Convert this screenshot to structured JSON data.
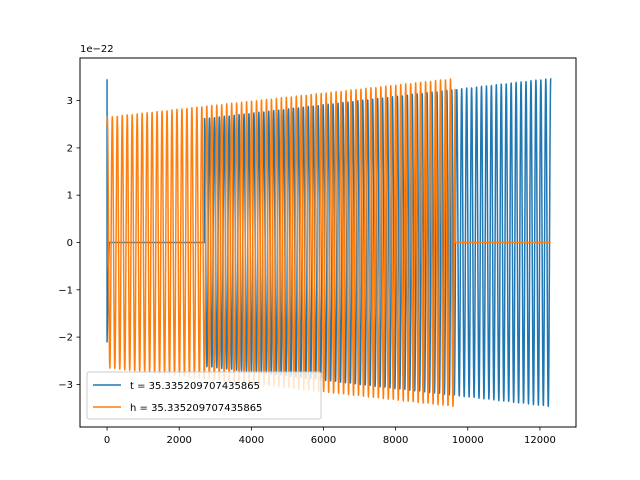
{
  "chart_data": {
    "type": "line",
    "offset_text": "1e−22",
    "xlim": [
      -750,
      13000
    ],
    "ylim": [
      -3.9,
      3.9
    ],
    "grid": false,
    "legend_placement": "lower-left",
    "x_ticks": [
      {
        "value": 0,
        "label": "0"
      },
      {
        "value": 2000,
        "label": "2000"
      },
      {
        "value": 4000,
        "label": "4000"
      },
      {
        "value": 6000,
        "label": "6000"
      },
      {
        "value": 8000,
        "label": "8000"
      },
      {
        "value": 10000,
        "label": "10000"
      },
      {
        "value": 12000,
        "label": "12000"
      }
    ],
    "y_ticks": [
      {
        "value": -3,
        "label": "−3"
      },
      {
        "value": -2,
        "label": "−2"
      },
      {
        "value": -1,
        "label": "−1"
      },
      {
        "value": 0,
        "label": "0"
      },
      {
        "value": 1,
        "label": "1"
      },
      {
        "value": 2,
        "label": "2"
      },
      {
        "value": 3,
        "label": "3"
      }
    ],
    "series": [
      {
        "name": "t = 35.335209707435865",
        "color": "#1f77b4",
        "signal": [
          {
            "x": 0,
            "y": 3.45
          },
          {
            "x": 60,
            "y": -2.1
          },
          {
            "x": 100,
            "y": 0
          },
          {
            "x": 2700,
            "y": 0
          },
          {
            "x": 2700,
            "y": 2.62,
            "note_oscillation_start": true
          },
          {
            "x": 12300,
            "y": 3.47
          }
        ],
        "oscillation_x_range": [
          2700,
          12300
        ],
        "amplitude_start": 2.62,
        "amplitude_end": 3.47,
        "cycle_count": 70,
        "zero_segment_x_range": [
          100,
          2700
        ]
      },
      {
        "name": "h = 35.335209707435865",
        "color": "#ff7f0e",
        "signal": [
          {
            "x": 0,
            "y": 2.65
          },
          {
            "x": 9650,
            "y": 3.47
          },
          {
            "x": 9650,
            "y": 0
          },
          {
            "x": 12300,
            "y": 0
          }
        ],
        "oscillation_x_range": [
          0,
          9650
        ],
        "amplitude_start": 2.65,
        "amplitude_end": 3.47,
        "cycle_count": 70,
        "zero_segment_x_range": [
          9650,
          12300
        ]
      }
    ]
  }
}
